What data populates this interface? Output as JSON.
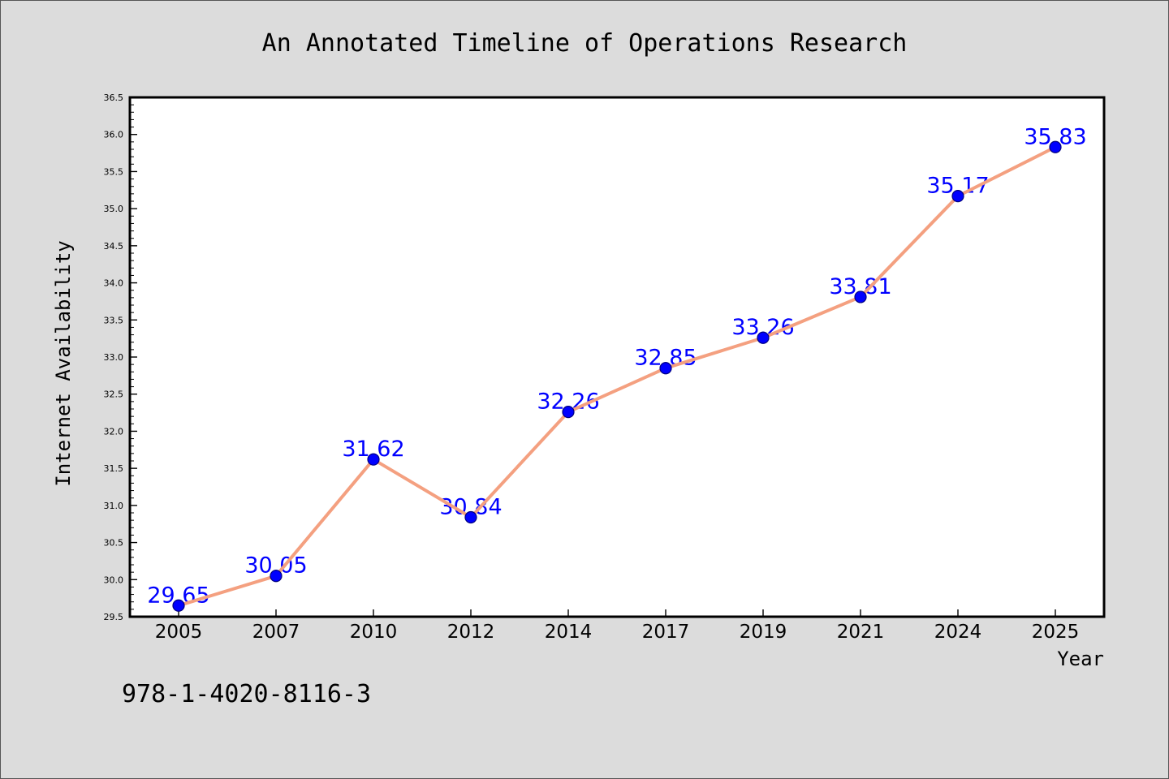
{
  "chart_data": {
    "type": "line",
    "title": "An Annotated Timeline of Operations Research",
    "xlabel": "Year",
    "ylabel": "Internet Availability",
    "categories": [
      "2005",
      "2007",
      "2010",
      "2012",
      "2014",
      "2017",
      "2019",
      "2021",
      "2024",
      "2025"
    ],
    "values": [
      29.65,
      30.05,
      31.62,
      30.84,
      32.26,
      32.85,
      33.26,
      33.81,
      35.17,
      35.83
    ],
    "ylim": [
      29.5,
      36.5
    ],
    "yticks": [
      "29.5",
      "30.0",
      "30.5",
      "31.0",
      "31.5",
      "32.0",
      "32.5",
      "33.0",
      "33.5",
      "34.0",
      "34.5",
      "35.0",
      "35.5",
      "36.0",
      "36.5"
    ],
    "show_data_labels": true,
    "grid": false,
    "legend": "none",
    "annotation": "978-1-4020-8116-3"
  },
  "colors": {
    "figure_background": "#dcdcdc",
    "plot_background": "#ffffff",
    "line": "#f4a080",
    "marker": "#0000ff",
    "marker_edge": "#000080",
    "data_label": "#0000ff",
    "axis": "#000000"
  }
}
